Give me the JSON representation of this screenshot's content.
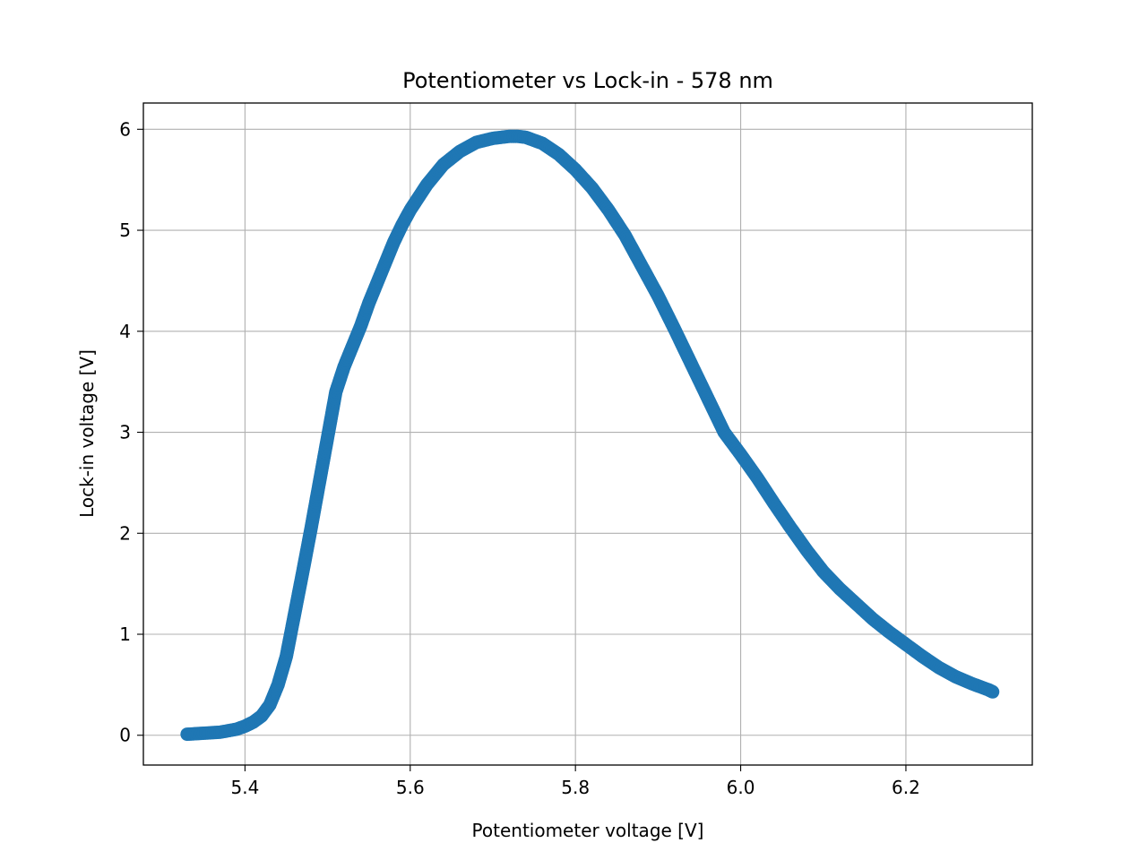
{
  "chart_data": {
    "type": "scatter",
    "title": "Potentiometer vs Lock-in - 578 nm",
    "xlabel": "Potentiometer voltage [V]",
    "ylabel": "Lock-in voltage [V]",
    "xlim": [
      5.277,
      6.353
    ],
    "ylim": [
      -0.295,
      6.26
    ],
    "xticks": [
      5.4,
      5.6,
      5.8,
      6.0,
      6.2
    ],
    "xtick_labels": [
      "5.4",
      "5.6",
      "5.8",
      "6.0",
      "6.2"
    ],
    "yticks": [
      0,
      1,
      2,
      3,
      4,
      5,
      6
    ],
    "ytick_labels": [
      "0",
      "1",
      "2",
      "3",
      "4",
      "5",
      "6"
    ],
    "grid": true,
    "series": [
      {
        "color": "#1f77b4",
        "x": [
          5.33,
          5.35,
          5.37,
          5.39,
          5.4,
          5.41,
          5.42,
          5.43,
          5.44,
          5.45,
          5.46,
          5.47,
          5.48,
          5.49,
          5.5,
          5.51,
          5.52,
          5.53,
          5.54,
          5.55,
          5.56,
          5.57,
          5.58,
          5.59,
          5.6,
          5.62,
          5.64,
          5.66,
          5.68,
          5.7,
          5.72,
          5.73,
          5.74,
          5.76,
          5.78,
          5.8,
          5.82,
          5.84,
          5.86,
          5.88,
          5.9,
          5.92,
          5.94,
          5.96,
          5.98,
          6.0,
          6.02,
          6.04,
          6.06,
          6.08,
          6.1,
          6.12,
          6.14,
          6.16,
          6.18,
          6.2,
          6.22,
          6.24,
          6.26,
          6.28,
          6.3,
          6.305
        ],
        "y": [
          0.01,
          0.02,
          0.03,
          0.06,
          0.09,
          0.13,
          0.19,
          0.3,
          0.5,
          0.78,
          1.2,
          1.62,
          2.05,
          2.5,
          2.95,
          3.4,
          3.65,
          3.85,
          4.05,
          4.28,
          4.48,
          4.68,
          4.88,
          5.05,
          5.2,
          5.45,
          5.65,
          5.78,
          5.87,
          5.91,
          5.93,
          5.93,
          5.92,
          5.86,
          5.75,
          5.6,
          5.42,
          5.2,
          4.95,
          4.65,
          4.35,
          4.02,
          3.68,
          3.34,
          3.0,
          2.78,
          2.55,
          2.3,
          2.06,
          1.83,
          1.62,
          1.45,
          1.3,
          1.15,
          1.02,
          0.9,
          0.78,
          0.67,
          0.58,
          0.51,
          0.45,
          0.43
        ]
      }
    ]
  }
}
